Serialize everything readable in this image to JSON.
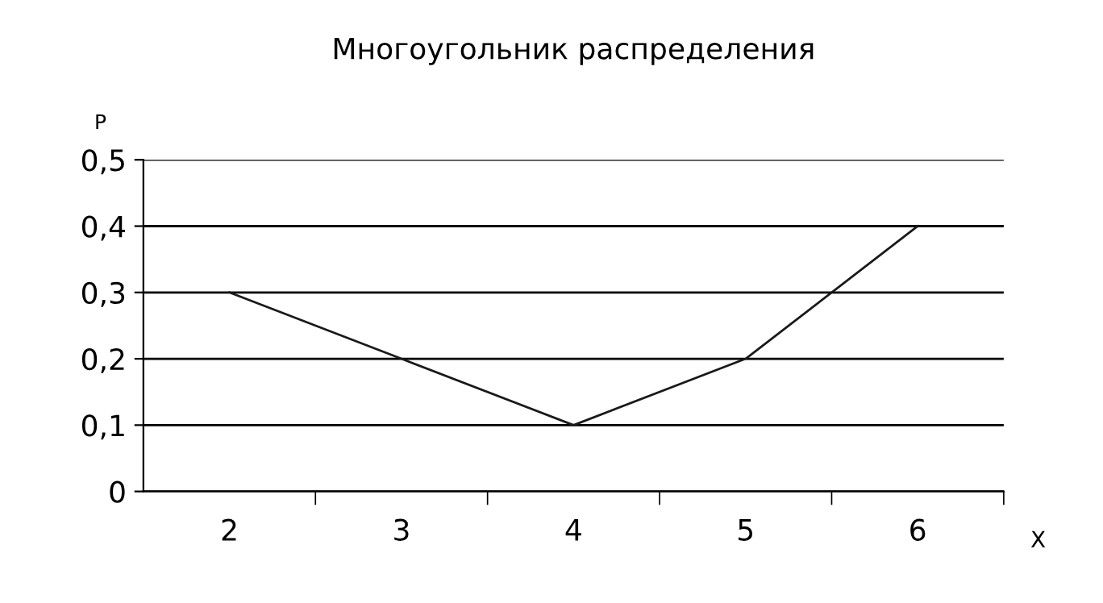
{
  "chart_data": {
    "type": "line",
    "title": "Многоугольник распределения",
    "xlabel": "X",
    "ylabel": "P",
    "categories": [
      "2",
      "3",
      "4",
      "5",
      "6"
    ],
    "values": [
      0.3,
      0.2,
      0.1,
      0.2,
      0.4
    ],
    "color": "#1a1a1a",
    "ylim": [
      0,
      0.5
    ],
    "yticks": [
      0,
      {
        "value": 0.1,
        "label": "0,1"
      },
      {
        "value": 0.2,
        "label": "0,2"
      },
      {
        "value": 0.3,
        "label": "0,3"
      },
      {
        "value": 0.4,
        "label": "0,4"
      },
      {
        "value": 0.5,
        "label": "0,5"
      }
    ],
    "grid": "y",
    "marker": "none",
    "line_style": "solid",
    "legend": false
  }
}
